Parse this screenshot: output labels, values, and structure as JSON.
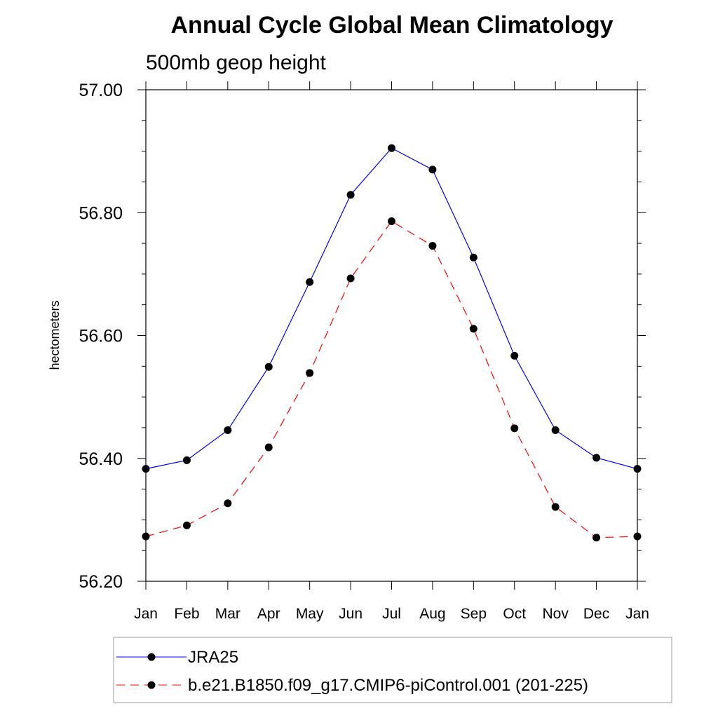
{
  "chart_data": {
    "type": "line",
    "title": "Annual Cycle Global Mean Climatology",
    "subtitle": "500mb geop height",
    "xlabel": "",
    "ylabel": "hectometers",
    "categories": [
      "Jan",
      "Feb",
      "Mar",
      "Apr",
      "May",
      "Jun",
      "Jul",
      "Aug",
      "Sep",
      "Oct",
      "Nov",
      "Dec",
      "Jan"
    ],
    "ylim": [
      56.2,
      57.0
    ],
    "yticks": [
      56.2,
      56.4,
      56.6,
      56.8,
      57.0
    ],
    "ytick_labels": [
      "56.20",
      "56.40",
      "56.60",
      "56.80",
      "57.00"
    ],
    "grid": false,
    "legend_position": "bottom",
    "series": [
      {
        "name": "JRA25",
        "color": "#0000ff",
        "dash": "solid",
        "marker": "filled-circle",
        "values": [
          56.383,
          56.397,
          56.446,
          56.549,
          56.687,
          56.829,
          56.905,
          56.87,
          56.727,
          56.567,
          56.446,
          56.401,
          56.383
        ]
      },
      {
        "name": "b.e21.B1850.f09_g17.CMIP6-piControl.001 (201-225)",
        "color": "#ff0000",
        "dash": "dashed",
        "marker": "filled-circle",
        "values": [
          56.273,
          56.291,
          56.327,
          56.418,
          56.539,
          56.693,
          56.786,
          56.746,
          56.611,
          56.449,
          56.321,
          56.271,
          56.273
        ]
      }
    ]
  }
}
